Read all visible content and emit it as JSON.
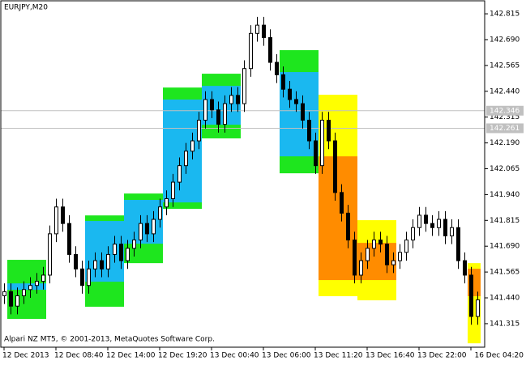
{
  "chart_data": {
    "type": "candlestick",
    "title": "EURJPY,M20",
    "footer": "Alpari NZ MT5, © 2001-2013, MetaQuotes Software Corp.",
    "categories": [
      "12 Dec 2013",
      null,
      null,
      null,
      null,
      null,
      null,
      null,
      "12 Dec 08:40",
      null,
      null,
      null,
      null,
      null,
      null,
      null,
      "12 Dec 14:00",
      null,
      null,
      null,
      null,
      null,
      null,
      null,
      "12 Dec 19:20",
      null,
      null,
      null,
      null,
      null,
      null,
      null,
      "13 Dec 00:40",
      null,
      null,
      null,
      null,
      null,
      null,
      null,
      "13 Dec 06:00",
      null,
      null,
      null,
      null,
      null,
      null,
      null,
      "13 Dec 11:20",
      null,
      null,
      null,
      null,
      null,
      null,
      null,
      "13 Dec 16:40",
      null,
      null,
      null,
      null,
      null,
      null,
      null,
      "13 Dec 22:00",
      null,
      null,
      null,
      null,
      null,
      null,
      null,
      "16 Dec 04:20",
      null
    ],
    "open": [
      141.45,
      141.47,
      141.4,
      141.45,
      141.48,
      141.5,
      141.52,
      141.55,
      141.75,
      141.88,
      141.8,
      141.65,
      141.58,
      141.5,
      141.58,
      141.62,
      141.58,
      141.65,
      141.7,
      141.62,
      141.68,
      141.72,
      141.8,
      141.75,
      141.82,
      141.88,
      141.92,
      142.0,
      142.08,
      142.15,
      142.2,
      142.3,
      142.4,
      142.35,
      142.28,
      142.38,
      142.42,
      142.38,
      142.55,
      142.72,
      142.76,
      142.7,
      142.58,
      142.52,
      142.45,
      142.4,
      142.38,
      142.3,
      142.2,
      142.08,
      142.3,
      142.2,
      141.95,
      141.85,
      141.72,
      141.55,
      141.62,
      141.68,
      141.72,
      141.7,
      141.6,
      141.62,
      141.66,
      141.72,
      141.78,
      141.84,
      141.8,
      141.78,
      141.82,
      141.74,
      141.78,
      141.62,
      141.55,
      141.35
    ],
    "high": [
      141.51,
      141.51,
      141.49,
      141.52,
      141.54,
      141.56,
      141.59,
      141.79,
      141.92,
      141.92,
      141.84,
      141.69,
      141.62,
      141.62,
      141.66,
      141.66,
      141.69,
      141.74,
      141.74,
      141.72,
      141.76,
      141.84,
      141.84,
      141.86,
      141.92,
      141.96,
      142.04,
      142.12,
      142.19,
      142.24,
      142.34,
      142.44,
      142.44,
      142.39,
      142.42,
      142.46,
      142.46,
      142.59,
      142.76,
      142.8,
      142.8,
      142.74,
      142.62,
      142.56,
      142.49,
      142.44,
      142.42,
      142.34,
      142.24,
      142.34,
      142.34,
      142.24,
      141.99,
      141.89,
      141.76,
      141.66,
      141.72,
      141.76,
      141.76,
      141.74,
      141.66,
      141.7,
      141.76,
      141.82,
      141.88,
      141.88,
      141.84,
      141.86,
      141.86,
      141.82,
      141.82,
      141.66,
      141.59,
      141.47
    ],
    "low": [
      141.41,
      141.36,
      141.36,
      141.41,
      141.44,
      141.46,
      141.48,
      141.51,
      141.71,
      141.76,
      141.61,
      141.54,
      141.46,
      141.46,
      141.54,
      141.54,
      141.54,
      141.61,
      141.58,
      141.58,
      141.64,
      141.68,
      141.71,
      141.71,
      141.78,
      141.84,
      141.88,
      141.96,
      142.04,
      142.11,
      142.16,
      142.26,
      142.31,
      142.24,
      142.24,
      142.34,
      142.34,
      142.34,
      142.51,
      142.68,
      142.66,
      142.54,
      142.48,
      142.41,
      142.36,
      142.34,
      142.26,
      142.16,
      142.04,
      142.04,
      142.16,
      141.91,
      141.81,
      141.68,
      141.51,
      141.51,
      141.58,
      141.64,
      141.66,
      141.56,
      141.56,
      141.58,
      141.62,
      141.68,
      141.74,
      141.76,
      141.74,
      141.74,
      141.7,
      141.7,
      141.58,
      141.51,
      141.31,
      141.31
    ],
    "close": [
      141.47,
      141.4,
      141.45,
      141.48,
      141.5,
      141.52,
      141.55,
      141.75,
      141.88,
      141.8,
      141.65,
      141.58,
      141.5,
      141.58,
      141.62,
      141.58,
      141.65,
      141.7,
      141.62,
      141.68,
      141.72,
      141.8,
      141.75,
      141.82,
      141.88,
      141.92,
      142.0,
      142.08,
      142.15,
      142.2,
      142.3,
      142.4,
      142.35,
      142.28,
      142.38,
      142.42,
      142.38,
      142.55,
      142.72,
      142.76,
      142.7,
      142.58,
      142.52,
      142.45,
      142.4,
      142.38,
      142.3,
      142.2,
      142.08,
      142.3,
      142.2,
      141.95,
      141.85,
      141.72,
      141.55,
      141.62,
      141.68,
      141.72,
      141.7,
      141.6,
      141.62,
      141.66,
      141.72,
      141.78,
      141.84,
      141.8,
      141.78,
      141.82,
      141.74,
      141.78,
      141.62,
      141.55,
      141.35,
      141.43
    ],
    "ylim": [
      141.205,
      142.874
    ],
    "yticks": [
      142.815,
      {
        "value": 142.69,
        "label": "142.690"
      },
      142.565,
      {
        "value": 142.44,
        "label": "142.440"
      },
      142.315,
      {
        "value": 142.19,
        "label": "142.190"
      },
      142.065,
      {
        "value": 141.94,
        "label": "141.940"
      },
      141.815,
      {
        "value": 141.69,
        "label": "141.690"
      },
      141.565,
      {
        "value": 141.44,
        "label": "141.440"
      },
      141.315
    ],
    "hlines": [
      142.346,
      142.261
    ],
    "hline_color": "#c0c0c0",
    "bull_color": "#ffffff",
    "bear_color": "#000000",
    "boxes": [
      {
        "start": 1,
        "end": 6,
        "outer": [
          141.338,
          141.624
        ],
        "inner": [
          141.479,
          141.51
        ],
        "outer_color": "#1ee61e",
        "inner_color": "#1ab8f0"
      },
      {
        "start": 13,
        "end": 18,
        "outer": [
          141.397,
          141.839
        ],
        "inner": [
          141.518,
          141.812
        ],
        "outer_color": "#1ee61e",
        "inner_color": "#1ab8f0"
      },
      {
        "start": 19,
        "end": 24,
        "outer": [
          141.608,
          141.945
        ],
        "inner": [
          141.702,
          141.914
        ],
        "outer_color": "#1ee61e",
        "inner_color": "#1ab8f0"
      },
      {
        "start": 25,
        "end": 30,
        "outer": [
          141.871,
          142.458
        ],
        "inner": [
          141.902,
          142.4
        ],
        "outer_color": "#1ee61e",
        "inner_color": "#1ab8f0"
      },
      {
        "start": 31,
        "end": 36,
        "outer": [
          142.212,
          142.525
        ],
        "inner": [
          142.278,
          142.466
        ],
        "outer_color": "#1ee61e",
        "inner_color": "#1ab8f0"
      },
      {
        "start": 43,
        "end": 48,
        "outer": [
          142.043,
          142.639
        ],
        "inner": [
          142.125,
          142.533
        ],
        "outer_color": "#1ee61e",
        "inner_color": "#1ab8f0"
      },
      {
        "start": 49,
        "end": 54,
        "outer": [
          141.448,
          142.423
        ],
        "inner": [
          141.526,
          142.125
        ],
        "outer_color": "#ffff00",
        "inner_color": "#ff8c00"
      },
      {
        "start": 55,
        "end": 60,
        "outer": [
          141.428,
          141.816
        ],
        "inner": [
          141.526,
          141.706
        ],
        "outer_color": "#ffff00",
        "inner_color": "#ff8c00"
      },
      {
        "start": 72,
        "end": 73,
        "outer": [
          141.22,
          141.608
        ],
        "inner": [
          141.448,
          141.581
        ],
        "outer_color": "#ffff00",
        "inner_color": "#ff8c00"
      }
    ]
  }
}
